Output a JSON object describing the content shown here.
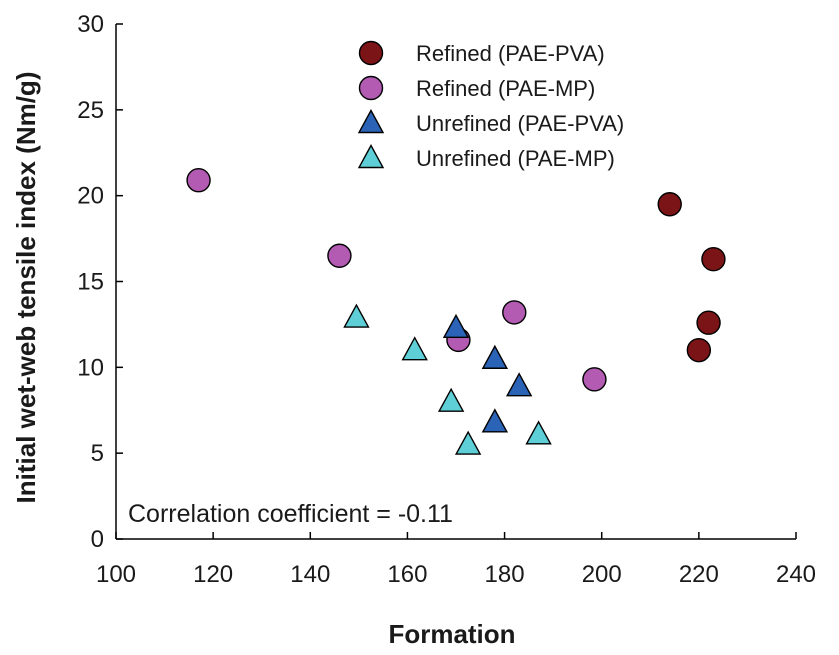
{
  "chart_data": {
    "type": "scatter",
    "xlabel": "Formation",
    "ylabel": "Initial wet-web tensile index (Nm/g)",
    "xlim": [
      100,
      240
    ],
    "ylim": [
      0,
      30
    ],
    "xticks": [
      100,
      120,
      140,
      160,
      180,
      200,
      220,
      240
    ],
    "yticks": [
      0,
      5,
      10,
      15,
      20,
      25,
      30
    ],
    "grid": false,
    "legend_position": "top-center",
    "annotation": "Correlation coefficient = -0.11",
    "series": [
      {
        "name": "Refined (PAE-PVA)",
        "marker": "circle",
        "color": "#7b1416",
        "points": [
          {
            "x": 214.0,
            "y": 19.5
          },
          {
            "x": 223.0,
            "y": 16.3
          },
          {
            "x": 222.0,
            "y": 12.6
          },
          {
            "x": 220.0,
            "y": 11.0
          }
        ]
      },
      {
        "name": "Refined (PAE-MP)",
        "marker": "circle",
        "color": "#b35ab3",
        "points": [
          {
            "x": 117.0,
            "y": 20.9
          },
          {
            "x": 146.0,
            "y": 16.5
          },
          {
            "x": 182.0,
            "y": 13.2
          },
          {
            "x": 170.5,
            "y": 11.6
          },
          {
            "x": 198.5,
            "y": 9.3
          }
        ]
      },
      {
        "name": "Unrefined (PAE-PVA)",
        "marker": "triangle",
        "color": "#2b63b6",
        "points": [
          {
            "x": 170.0,
            "y": 12.3
          },
          {
            "x": 178.0,
            "y": 10.5
          },
          {
            "x": 183.0,
            "y": 8.9
          },
          {
            "x": 178.0,
            "y": 6.8
          }
        ]
      },
      {
        "name": "Unrefined (PAE-MP)",
        "marker": "triangle",
        "color": "#5fcfd7",
        "points": [
          {
            "x": 149.5,
            "y": 12.9
          },
          {
            "x": 161.5,
            "y": 11.0
          },
          {
            "x": 169.0,
            "y": 8.0
          },
          {
            "x": 172.5,
            "y": 5.5
          },
          {
            "x": 187.0,
            "y": 6.1
          }
        ]
      }
    ]
  }
}
